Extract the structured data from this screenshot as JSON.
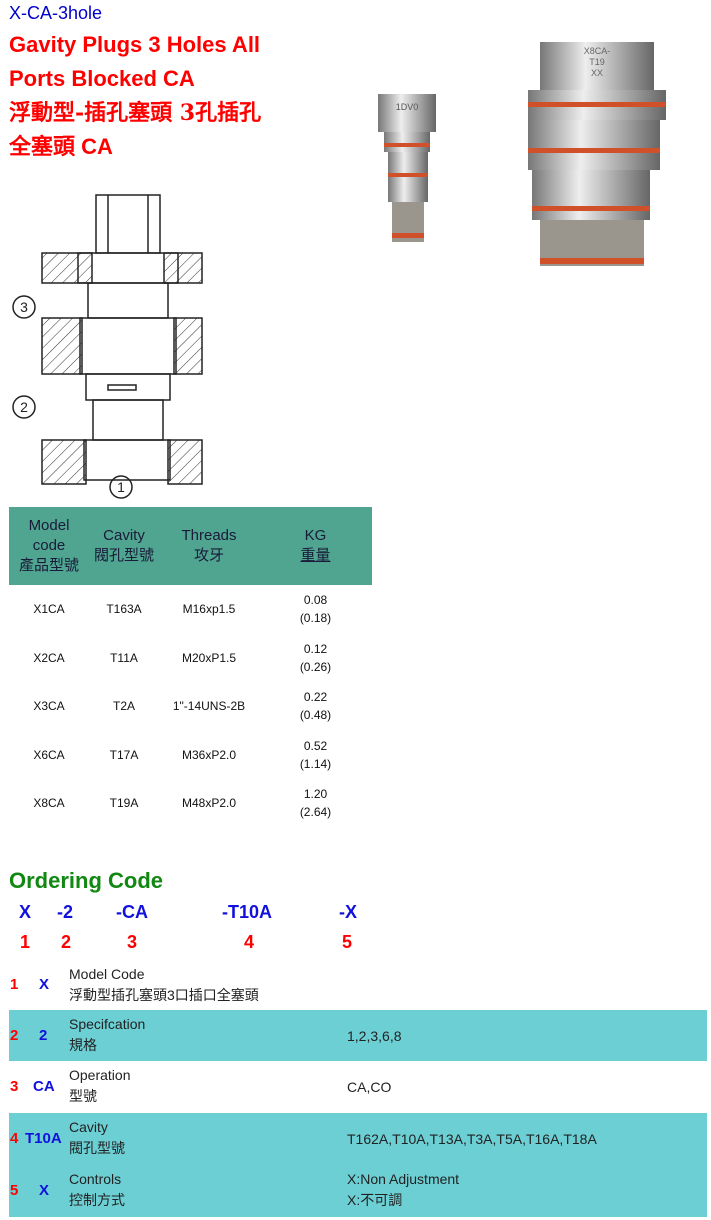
{
  "header": {
    "code": "X-CA-3hole",
    "title_lines": [
      "Gavity Plugs 3 Holes All",
      "Ports Blocked CA",
      "浮動型-插孔塞頭 3孔插孔",
      "全塞頭 CA"
    ]
  },
  "drawing": {
    "port_labels": [
      "3",
      "2",
      "1"
    ]
  },
  "photos": {
    "small_label": "1DV0",
    "large_label": [
      "X8CA-",
      "T19",
      "XX"
    ]
  },
  "table": {
    "headers": [
      [
        "Model",
        "code",
        "產品型號"
      ],
      [
        "Cavity",
        "閥孔型號"
      ],
      [
        "Threads",
        "攻牙"
      ],
      [
        "KG",
        "重量"
      ]
    ],
    "rows": [
      {
        "model": "X1CA",
        "cavity": "T163A",
        "threads": "M16xp1.5",
        "kg": "0.08",
        "lb": "(0.18)"
      },
      {
        "model": "X2CA",
        "cavity": "T11A",
        "threads": "M20xP1.5",
        "kg": "0.12",
        "lb": "(0.26)"
      },
      {
        "model": "X3CA",
        "cavity": "T2A",
        "threads": "1\"-14UNS-2B",
        "kg": "0.22",
        "lb": "(0.48)"
      },
      {
        "model": "X6CA",
        "cavity": "T17A",
        "threads": "M36xP2.0",
        "kg": "0.52",
        "lb": "(1.14)"
      },
      {
        "model": "X8CA",
        "cavity": "T19A",
        "threads": "M48xP2.0",
        "kg": "1.20",
        "lb": "(2.64)"
      }
    ]
  },
  "ordering": {
    "title": "Ordering Code",
    "code_parts": [
      "X",
      "-2",
      "-CA",
      "-T10A",
      "-X"
    ],
    "numbers": [
      "1",
      "2",
      "3",
      "4",
      "5"
    ],
    "rows": [
      {
        "num": "1",
        "code": "X",
        "label": "Model Code",
        "label_zh": "浮動型插孔塞頭3口插口全塞頭",
        "value": "",
        "value2": ""
      },
      {
        "num": "2",
        "code": "2",
        "label": "Specifcation",
        "label_zh": "規格",
        "value": "1,2,3,6,8",
        "value2": ""
      },
      {
        "num": "3",
        "code": "CA",
        "label": "Operation",
        "label_zh": "型號",
        "value": "CA,CO",
        "value2": ""
      },
      {
        "num": "4",
        "code": "T10A",
        "label": "Cavity",
        "label_zh": "閥孔型號",
        "value": "T162A,T10A,T13A,T3A,T5A,T16A,T18A",
        "value2": ""
      },
      {
        "num": "5",
        "code": "X",
        "label": "Controls",
        "label_zh": "控制方式",
        "value": "X:Non Adjustment",
        "value2": "X:不可調"
      }
    ]
  },
  "colors": {
    "table_header": "#4fa58f",
    "row_highlight": "#6ccfd4",
    "title_red": "#ff0000",
    "heading_green": "#118811",
    "code_blue": "#1111dd"
  }
}
